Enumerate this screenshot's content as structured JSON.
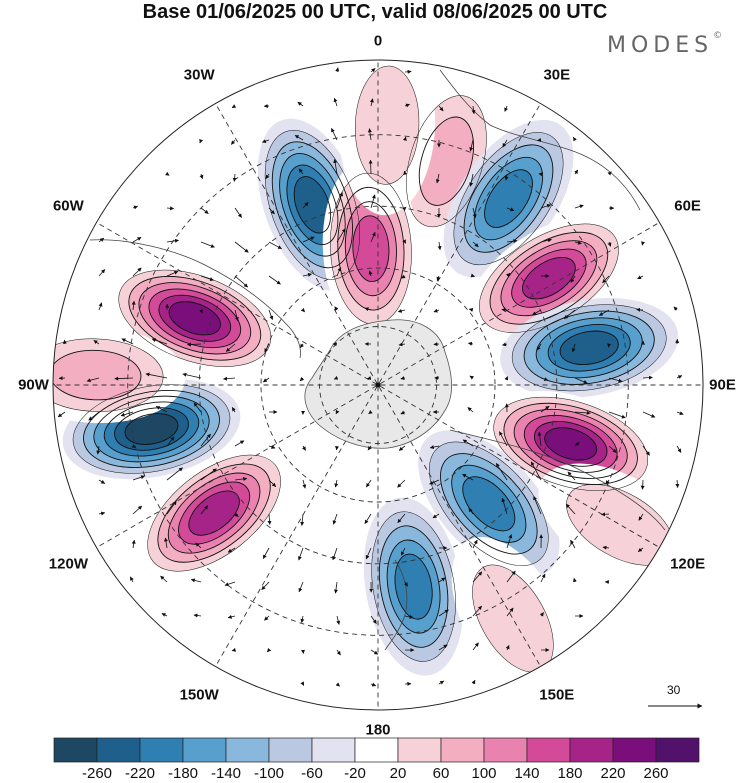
{
  "title": "Base 01/06/2025 00 UTC, valid 08/06/2025 00 UTC",
  "brand": "MODES",
  "brand_mark": "©",
  "longitude_labels": [
    "0",
    "30E",
    "60E",
    "90E",
    "120E",
    "150E",
    "180",
    "150W",
    "120W",
    "90W",
    "60W",
    "30W"
  ],
  "reference_vector_label": "30",
  "colorbar": {
    "ticks": [
      "-260",
      "-220",
      "-180",
      "-140",
      "-100",
      "-60",
      "-20",
      "20",
      "60",
      "100",
      "140",
      "180",
      "220",
      "260"
    ],
    "colors": [
      "#1d4762",
      "#1e5f8b",
      "#2f7fb3",
      "#579fcd",
      "#8ab7dc",
      "#bac8e1",
      "#e2e2f0",
      "#ffffff",
      "#f6d2d8",
      "#f3aec2",
      "#ea82b0",
      "#d34a99",
      "#a62488",
      "#7a0f7c",
      "#52126c"
    ]
  },
  "anomalies": [
    {
      "lon": 17,
      "r": 0.72,
      "value": 120
    },
    {
      "lon": 35,
      "r": 0.7,
      "value": -180
    },
    {
      "lon": 58,
      "r": 0.62,
      "value": 240
    },
    {
      "lon": 80,
      "r": 0.66,
      "value": -220
    },
    {
      "lon": 107,
      "r": 0.62,
      "value": 260
    },
    {
      "lon": 137,
      "r": 0.5,
      "value": -200
    },
    {
      "lon": 170,
      "r": 0.63,
      "value": -180
    },
    {
      "lon": -128,
      "r": 0.64,
      "value": 240
    },
    {
      "lon": -101,
      "r": 0.71,
      "value": -260
    },
    {
      "lon": -70,
      "r": 0.6,
      "value": 260
    },
    {
      "lon": -88,
      "r": 0.87,
      "value": 120
    },
    {
      "lon": -20,
      "r": 0.59,
      "value": -220
    },
    {
      "lon": -3,
      "r": 0.42,
      "value": 200
    },
    {
      "lon": 2,
      "r": 0.8,
      "value": 80
    },
    {
      "lon": 120,
      "r": 0.86,
      "value": 60
    },
    {
      "lon": 150,
      "r": 0.83,
      "value": 60
    }
  ]
}
